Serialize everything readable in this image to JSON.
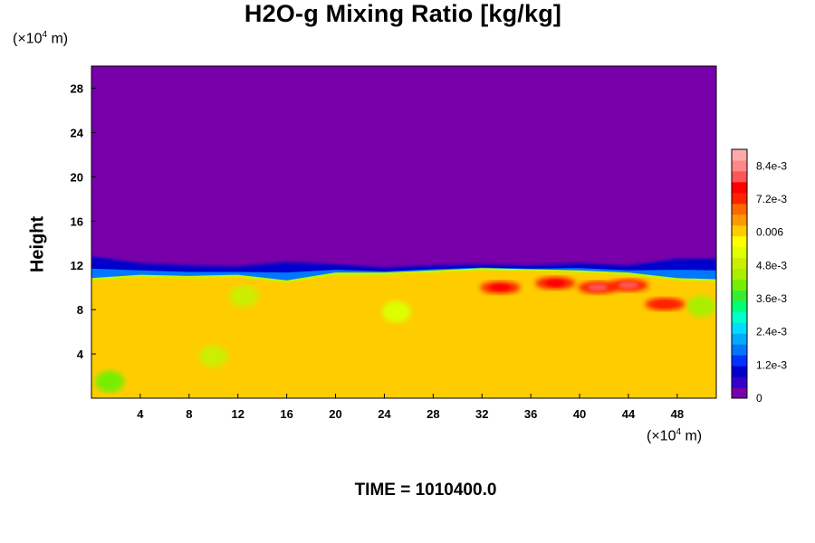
{
  "chart_data": {
    "type": "heatmap",
    "title": "H2O-g Mixing Ratio [kg/kg]",
    "ylabel": "Height",
    "x_unit": {
      "prefix": "(×10",
      "exp": "4",
      "suffix": " m)"
    },
    "y_unit": {
      "prefix": "(×10",
      "exp": "4",
      "suffix": " m)"
    },
    "xlim": [
      0,
      51.2
    ],
    "ylim": [
      0,
      30
    ],
    "x_ticks": [
      4,
      8,
      12,
      16,
      20,
      24,
      28,
      32,
      36,
      40,
      44,
      48
    ],
    "y_ticks": [
      4,
      8,
      12,
      16,
      20,
      24,
      28
    ],
    "field": {
      "background_value": 0,
      "lower_layer_value": 0.0061,
      "moist_layer_top": [
        [
          0,
          10.6
        ],
        [
          4,
          10.9
        ],
        [
          8,
          10.8
        ],
        [
          12,
          10.9
        ],
        [
          16,
          10.4
        ],
        [
          20,
          11.1
        ],
        [
          24,
          11.1
        ],
        [
          28,
          11.3
        ],
        [
          32,
          11.5
        ],
        [
          36,
          11.4
        ],
        [
          40,
          11.3
        ],
        [
          44,
          11.1
        ],
        [
          48,
          10.6
        ],
        [
          51.2,
          10.5
        ]
      ],
      "dry_band_top": [
        [
          0,
          12.8
        ],
        [
          4,
          12.2
        ],
        [
          8,
          12.0
        ],
        [
          12,
          11.9
        ],
        [
          16,
          12.3
        ],
        [
          20,
          12.1
        ],
        [
          24,
          11.8
        ],
        [
          28,
          12.0
        ],
        [
          32,
          12.1
        ],
        [
          36,
          12.0
        ],
        [
          40,
          12.2
        ],
        [
          44,
          12.0
        ],
        [
          48,
          12.6
        ],
        [
          51.2,
          12.6
        ]
      ],
      "moist_patches": [
        {
          "x": 33.5,
          "y": 10.0,
          "value": 0.0078
        },
        {
          "x": 38.0,
          "y": 10.4,
          "value": 0.0076
        },
        {
          "x": 41.5,
          "y": 10.0,
          "value": 0.0082
        },
        {
          "x": 44.0,
          "y": 10.2,
          "value": 0.0079
        },
        {
          "x": 47.0,
          "y": 8.5,
          "value": 0.0074
        }
      ],
      "drier_patches": [
        {
          "x": 1.5,
          "y": 1.5,
          "value": 0.0042
        },
        {
          "x": 10.0,
          "y": 3.8,
          "value": 0.005
        },
        {
          "x": 12.5,
          "y": 9.2,
          "value": 0.0047
        },
        {
          "x": 25.0,
          "y": 7.8,
          "value": 0.0054
        },
        {
          "x": 50.0,
          "y": 8.3,
          "value": 0.0046
        }
      ]
    },
    "colorbar": {
      "min": 0,
      "max": 0.009,
      "tick_values": [
        0,
        0.0012,
        0.0024,
        0.0036,
        0.0048,
        0.006,
        0.0072,
        0.0084
      ],
      "tick_labels": [
        "0",
        "1.2e-3",
        "2.4e-3",
        "3.6e-3",
        "4.8e-3",
        "0.006",
        "7.2e-3",
        "8.4e-3"
      ],
      "colors": [
        "#7700aa",
        "#3300cc",
        "#0000cc",
        "#0033ff",
        "#0077ff",
        "#00aaff",
        "#00ddff",
        "#00ffcc",
        "#00ff77",
        "#33ee33",
        "#77ee00",
        "#aaee00",
        "#ccee00",
        "#ddff00",
        "#ffff00",
        "#ffcc00",
        "#ff9900",
        "#ff6600",
        "#ff2200",
        "#ff0000",
        "#ff5555",
        "#ff8888",
        "#ffaaaa"
      ]
    },
    "annotation": "TIME = 1010400.0"
  }
}
